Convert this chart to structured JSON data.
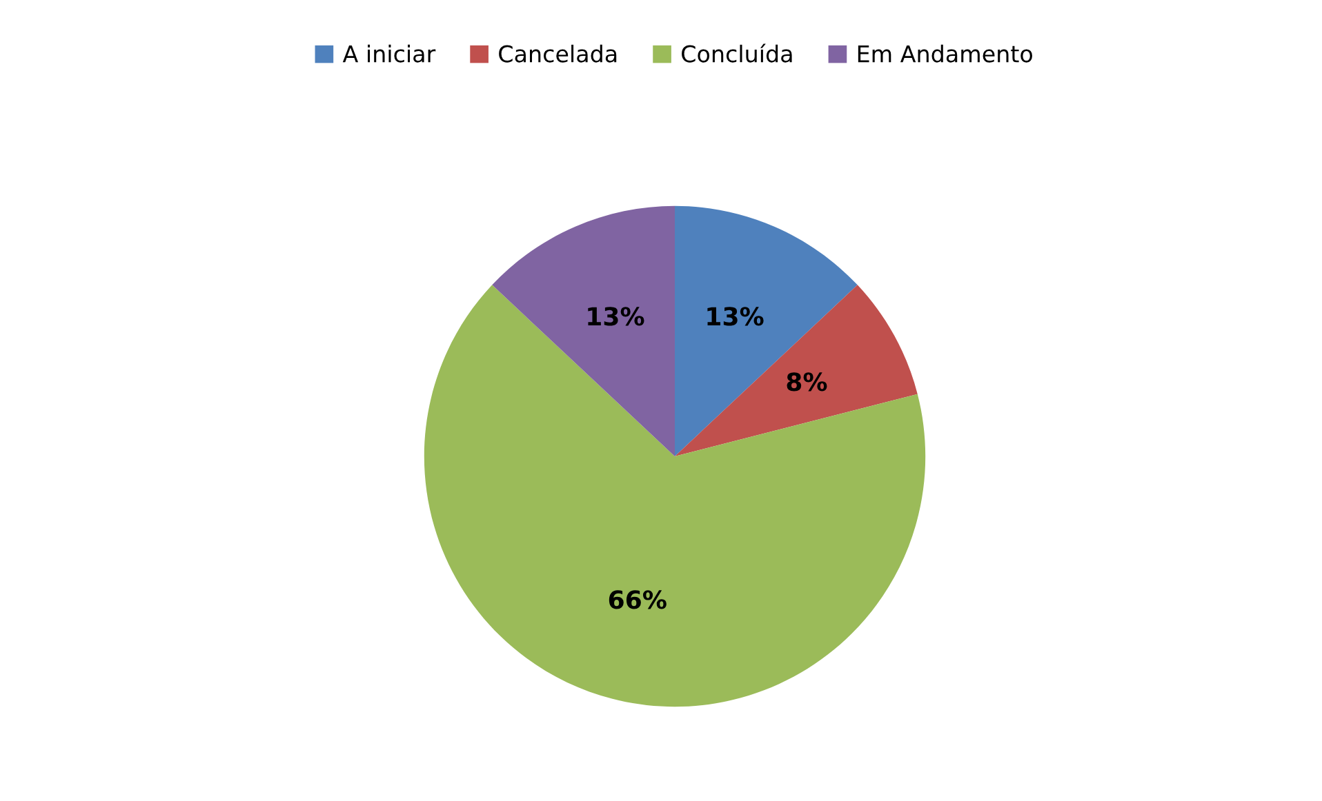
{
  "chart_data": {
    "type": "pie",
    "categories": [
      "A iniciar",
      "Cancelada",
      "Concluída",
      "Em Andamento"
    ],
    "values": [
      13,
      8,
      66,
      13
    ],
    "colors": [
      "#4f81bd",
      "#c0504d",
      "#9bbb59",
      "#8064a2"
    ],
    "value_labels": [
      "13%",
      "8%",
      "66%",
      "13%"
    ],
    "legend": "top"
  }
}
